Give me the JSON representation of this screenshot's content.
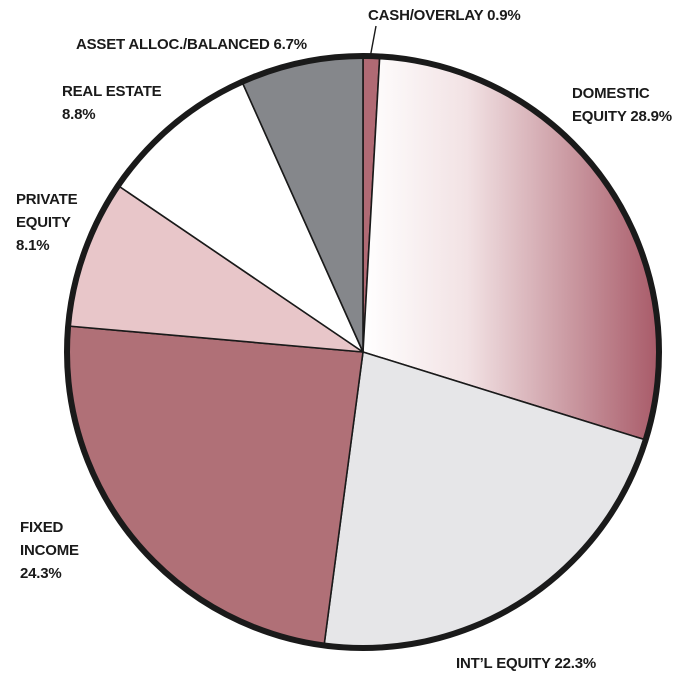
{
  "chart_data": {
    "type": "pie",
    "title": "",
    "slices": [
      {
        "label_lines": [
          "CASH/OVERLAY  0.9%"
        ],
        "name": "CASH/OVERLAY",
        "value": 0.9,
        "color": "#b06a74"
      },
      {
        "label_lines": [
          "DOMESTIC",
          "EQUITY 28.9%"
        ],
        "name": "DOMESTIC EQUITY",
        "value": 28.9,
        "color": "url(#domestic-gradient)"
      },
      {
        "label_lines": [
          "INT’L EQUITY 22.3%"
        ],
        "name": "INT’L EQUITY",
        "value": 22.3,
        "color": "#e6e6e8"
      },
      {
        "label_lines": [
          "FIXED",
          "INCOME",
          "24.3%"
        ],
        "name": "FIXED INCOME",
        "value": 24.3,
        "color": "#b07077"
      },
      {
        "label_lines": [
          "PRIVATE",
          "EQUITY",
          "8.1%"
        ],
        "name": "PRIVATE EQUITY",
        "value": 8.1,
        "color": "#e8c6c9"
      },
      {
        "label_lines": [
          "REAL ESTATE",
          "8.8%"
        ],
        "name": "REAL ESTATE",
        "value": 8.8,
        "color": "#ffffff"
      },
      {
        "label_lines": [
          "ASSET ALLOC./BALANCED 6.7%"
        ],
        "name": "ASSET ALLOC./BALANCED",
        "value": 6.7,
        "color": "#85878b"
      }
    ],
    "start_angle_deg": 0,
    "direction": "clockwise",
    "outline_color": "#1a1a1a",
    "gradient": {
      "from": "#ffffff",
      "to": "#a85a68"
    }
  }
}
